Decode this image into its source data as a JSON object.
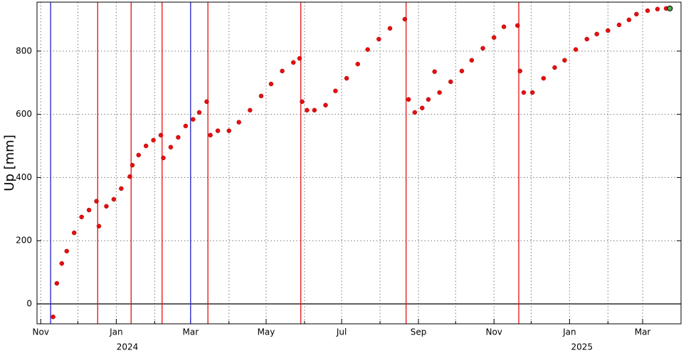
{
  "chart_data": {
    "type": "scatter",
    "y_label": "Up [mm]",
    "color": "#e41010",
    "x": [
      "2023-11-11",
      "2023-11-14",
      "2023-11-18",
      "2023-11-22",
      "2023-11-28",
      "2023-12-04",
      "2023-12-10",
      "2023-12-16",
      "2023-12-18",
      "2023-12-24",
      "2023-12-30",
      "2024-01-05",
      "2024-01-12",
      "2024-01-14",
      "2024-01-19",
      "2024-01-25",
      "2024-01-31",
      "2024-02-06",
      "2024-02-08",
      "2024-02-14",
      "2024-02-20",
      "2024-02-26",
      "2024-03-03",
      "2024-03-08",
      "2024-03-14",
      "2024-03-17",
      "2024-03-23",
      "2024-04-01",
      "2024-04-09",
      "2024-04-18",
      "2024-04-27",
      "2024-05-05",
      "2024-05-14",
      "2024-05-23",
      "2024-05-28",
      "2024-05-30",
      "2024-06-03",
      "2024-06-09",
      "2024-06-18",
      "2024-06-26",
      "2024-07-05",
      "2024-07-14",
      "2024-07-22",
      "2024-07-31",
      "2024-08-09",
      "2024-08-21",
      "2024-08-24",
      "2024-08-29",
      "2024-09-04",
      "2024-09-09",
      "2024-09-14",
      "2024-09-18",
      "2024-09-27",
      "2024-10-06",
      "2024-10-14",
      "2024-10-23",
      "2024-11-01",
      "2024-11-09",
      "2024-11-20",
      "2024-11-22",
      "2024-11-25",
      "2024-12-02",
      "2024-12-11",
      "2024-12-20",
      "2024-12-28",
      "2025-01-06",
      "2025-01-15",
      "2025-01-23",
      "2025-02-01",
      "2025-02-10",
      "2025-02-18",
      "2025-02-24",
      "2025-03-05",
      "2025-03-13",
      "2025-03-20"
    ],
    "values": [
      -41,
      65,
      128,
      167,
      225,
      275,
      297,
      325,
      246,
      309,
      331,
      365,
      403,
      439,
      471,
      500,
      518,
      534,
      462,
      496,
      527,
      563,
      584,
      606,
      640,
      534,
      548,
      548,
      575,
      613,
      658,
      696,
      737,
      764,
      777,
      640,
      613,
      613,
      629,
      674,
      714,
      759,
      805,
      838,
      872,
      901,
      647,
      606,
      620,
      647,
      735,
      669,
      703,
      737,
      771,
      809,
      843,
      877,
      881,
      737,
      669,
      669,
      714,
      748,
      771,
      805,
      838,
      854,
      865,
      883,
      899,
      917,
      928,
      933,
      935
    ],
    "last_point": {
      "x": "2025-03-23",
      "value": 935,
      "color": "#4caf50"
    },
    "events": [
      {
        "date": "2023-11-09",
        "color": "#2222cc"
      },
      {
        "date": "2023-12-17",
        "color": "#e41010"
      },
      {
        "date": "2024-01-13",
        "color": "#e41010"
      },
      {
        "date": "2024-02-07",
        "color": "#e41010"
      },
      {
        "date": "2024-03-01",
        "color": "#2222cc"
      },
      {
        "date": "2024-03-15",
        "color": "#e41010"
      },
      {
        "date": "2024-05-29",
        "color": "#e41010"
      },
      {
        "date": "2024-08-22",
        "color": "#e41010"
      },
      {
        "date": "2024-11-21",
        "color": "#e41010"
      }
    ],
    "hline": 0,
    "xlim": [
      "2023-10-29",
      "2025-04-01"
    ],
    "ylim": [
      -63,
      955
    ],
    "yticks": [
      0,
      200,
      400,
      600,
      800
    ],
    "xticks": [
      {
        "value": "2023-11-01",
        "label": "Nov"
      },
      {
        "value": "2024-01-01",
        "label": "Jan"
      },
      {
        "value": "2024-03-01",
        "label": "Mar"
      },
      {
        "value": "2024-05-01",
        "label": "May"
      },
      {
        "value": "2024-07-01",
        "label": "Jul"
      },
      {
        "value": "2024-09-01",
        "label": "Sep"
      },
      {
        "value": "2024-11-01",
        "label": "Nov"
      },
      {
        "value": "2025-01-01",
        "label": "Jan"
      },
      {
        "value": "2025-03-01",
        "label": "Mar"
      }
    ],
    "xminor": [
      "2023-12-01",
      "2024-02-01",
      "2024-04-01",
      "2024-06-01",
      "2024-08-01",
      "2024-10-01",
      "2024-12-01",
      "2025-02-01"
    ],
    "year_labels": [
      {
        "value": "2024-01-10",
        "label": "2024"
      },
      {
        "value": "2025-01-11",
        "label": "2025"
      }
    ],
    "grid": true
  }
}
